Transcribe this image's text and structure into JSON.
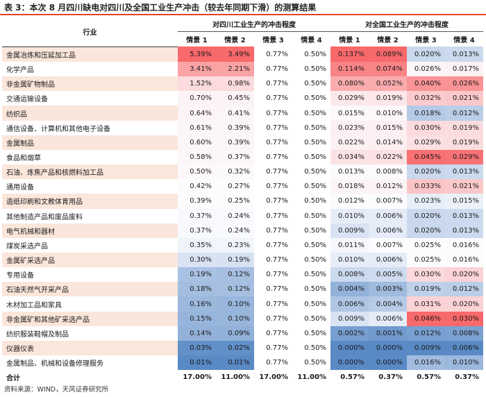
{
  "title": "表 3：本次 8 月四川缺电对四川及全国工业生产冲击（较去年同期下滑）的测算结果",
  "header": {
    "industry": "行业",
    "group_sichuan": "对四川工业生产的冲击程度",
    "group_national": "对全国工业生产的冲击程度",
    "scenarios": [
      "情景 1",
      "情景 2",
      "情景 3",
      "情景 4",
      "情景 1",
      "情景 2",
      "情景 3",
      "情景 4"
    ]
  },
  "rows": [
    {
      "name": "金属冶炼和压延加工品",
      "values": [
        "5.39%",
        "3.49%",
        "0.77%",
        "0.50%",
        "0.137%",
        "0.089%",
        "0.020%",
        "0.013%"
      ]
    },
    {
      "name": "化学产品",
      "values": [
        "3.41%",
        "2.21%",
        "0.77%",
        "0.50%",
        "0.114%",
        "0.074%",
        "0.026%",
        "0.017%"
      ]
    },
    {
      "name": "非金属矿物制品",
      "values": [
        "1.52%",
        "0.98%",
        "0.77%",
        "0.50%",
        "0.080%",
        "0.052%",
        "0.040%",
        "0.026%"
      ]
    },
    {
      "name": "交通运输设备",
      "values": [
        "0.70%",
        "0.45%",
        "0.77%",
        "0.50%",
        "0.029%",
        "0.019%",
        "0.032%",
        "0.021%"
      ]
    },
    {
      "name": "纺织品",
      "values": [
        "0.64%",
        "0.41%",
        "0.77%",
        "0.50%",
        "0.015%",
        "0.010%",
        "0.018%",
        "0.012%"
      ]
    },
    {
      "name": "通信设备、计算机和其他电子设备",
      "values": [
        "0.61%",
        "0.39%",
        "0.77%",
        "0.50%",
        "0.023%",
        "0.015%",
        "0.030%",
        "0.019%"
      ]
    },
    {
      "name": "金属制品",
      "values": [
        "0.60%",
        "0.39%",
        "0.77%",
        "0.50%",
        "0.022%",
        "0.014%",
        "0.029%",
        "0.019%"
      ]
    },
    {
      "name": "食品和烟草",
      "values": [
        "0.58%",
        "0.37%",
        "0.77%",
        "0.50%",
        "0.034%",
        "0.022%",
        "0.045%",
        "0.029%"
      ]
    },
    {
      "name": "石油、炼焦产品和核燃料加工品",
      "values": [
        "0.50%",
        "0.32%",
        "0.77%",
        "0.50%",
        "0.013%",
        "0.008%",
        "0.020%",
        "0.013%"
      ]
    },
    {
      "name": "通用设备",
      "values": [
        "0.42%",
        "0.27%",
        "0.77%",
        "0.50%",
        "0.018%",
        "0.012%",
        "0.033%",
        "0.021%"
      ]
    },
    {
      "name": "造纸印刷和文教体育用品",
      "values": [
        "0.39%",
        "0.25%",
        "0.77%",
        "0.50%",
        "0.012%",
        "0.007%",
        "0.023%",
        "0.015%"
      ]
    },
    {
      "name": "其他制造产品和废品废料",
      "values": [
        "0.37%",
        "0.24%",
        "0.77%",
        "0.50%",
        "0.010%",
        "0.006%",
        "0.020%",
        "0.013%"
      ]
    },
    {
      "name": "电气机械和器材",
      "values": [
        "0.37%",
        "0.24%",
        "0.77%",
        "0.50%",
        "0.009%",
        "0.006%",
        "0.020%",
        "0.013%"
      ]
    },
    {
      "name": "煤炭采选产品",
      "values": [
        "0.35%",
        "0.23%",
        "0.77%",
        "0.50%",
        "0.011%",
        "0.007%",
        "0.025%",
        "0.016%"
      ]
    },
    {
      "name": "金属矿采选产品",
      "values": [
        "0.30%",
        "0.19%",
        "0.77%",
        "0.50%",
        "0.010%",
        "0.006%",
        "0.025%",
        "0.016%"
      ]
    },
    {
      "name": "专用设备",
      "values": [
        "0.19%",
        "0.12%",
        "0.77%",
        "0.50%",
        "0.008%",
        "0.005%",
        "0.030%",
        "0.020%"
      ]
    },
    {
      "name": "石油天然气开采产品",
      "values": [
        "0.18%",
        "0.12%",
        "0.77%",
        "0.50%",
        "0.004%",
        "0.003%",
        "0.019%",
        "0.012%"
      ]
    },
    {
      "name": "木材加工品和家具",
      "values": [
        "0.16%",
        "0.10%",
        "0.77%",
        "0.50%",
        "0.006%",
        "0.004%",
        "0.031%",
        "0.020%"
      ]
    },
    {
      "name": "非金属矿和其他矿采选产品",
      "values": [
        "0.15%",
        "0.10%",
        "0.77%",
        "0.50%",
        "0.009%",
        "0.006%",
        "0.046%",
        "0.030%"
      ]
    },
    {
      "name": "纺织服装鞋帽及制品",
      "values": [
        "0.14%",
        "0.09%",
        "0.77%",
        "0.50%",
        "0.002%",
        "0.001%",
        "0.012%",
        "0.008%"
      ]
    },
    {
      "name": "仪器仪表",
      "values": [
        "0.03%",
        "0.02%",
        "0.77%",
        "0.50%",
        "0.000%",
        "0.000%",
        "0.009%",
        "0.006%"
      ]
    },
    {
      "name": "金属制品、机械和设备修理服务",
      "values": [
        "0.01%",
        "0.01%",
        "0.77%",
        "0.50%",
        "0.000%",
        "0.000%",
        "0.016%",
        "0.010%"
      ]
    }
  ],
  "total": {
    "name": "合计",
    "values": [
      "17.00%",
      "11.00%",
      "17.00%",
      "11.00%",
      "0.57%",
      "0.37%",
      "0.57%",
      "0.37%"
    ]
  },
  "source": "资料来源：WIND，天风证券研究所",
  "colors": {
    "accent_line": "#e0451f",
    "heat_high": "#f8696b",
    "heat_mid": "#fcfcff",
    "heat_low": "#5a8ac6",
    "row_stripe": "#fbe6db"
  }
}
